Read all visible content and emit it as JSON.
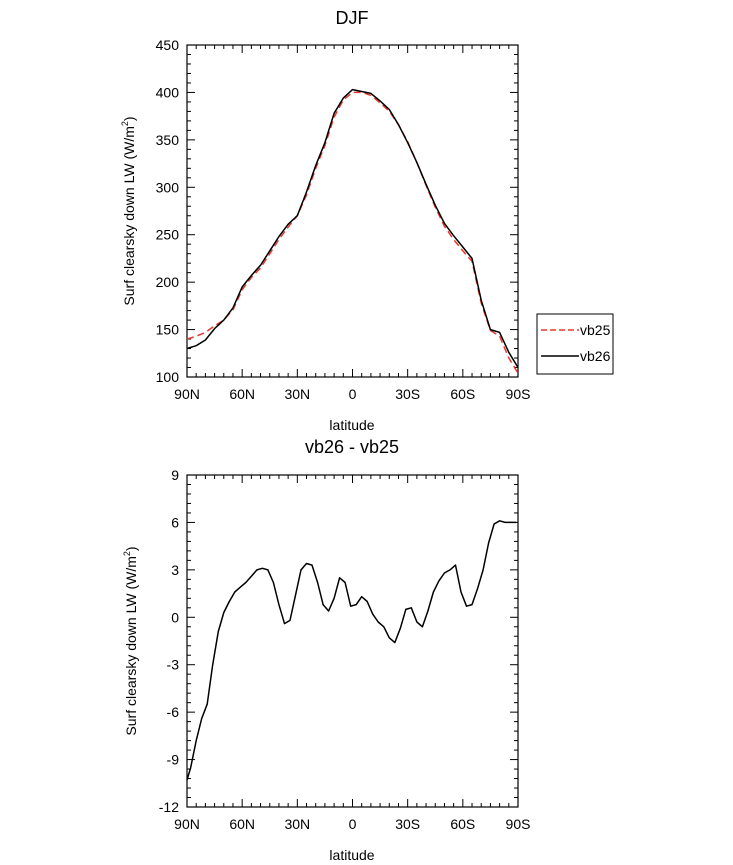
{
  "chart_data": [
    {
      "type": "line",
      "title": "DJF",
      "xlabel": "latitude",
      "ylabel": "Surf clearsky down LW (W/m",
      "ylabel_sup": "2",
      "ylabel_close": ")",
      "xlim": [
        90,
        -90
      ],
      "ylim": [
        100,
        450
      ],
      "xticks": [
        90,
        60,
        30,
        0,
        -30,
        -60,
        -90
      ],
      "xtick_labels": [
        "90N",
        "60N",
        "30N",
        "0",
        "30S",
        "60S",
        "90S"
      ],
      "yticks": [
        100,
        150,
        200,
        250,
        300,
        350,
        400,
        450
      ],
      "ytick_labels": [
        "100",
        "150",
        "200",
        "250",
        "300",
        "350",
        "400",
        "450"
      ],
      "legend": {
        "placement": "right",
        "entries": [
          "vb25",
          "vb26"
        ]
      },
      "series": [
        {
          "name": "vb25",
          "color": "#e8382d",
          "style": "dashed",
          "x": [
            90,
            85,
            80,
            75,
            70,
            65,
            60,
            55,
            50,
            45,
            40,
            35,
            30,
            25,
            20,
            15,
            10,
            5,
            0,
            -5,
            -10,
            -15,
            -20,
            -25,
            -30,
            -35,
            -40,
            -45,
            -50,
            -55,
            -60,
            -65,
            -70,
            -75,
            -80,
            -85,
            -90
          ],
          "y": [
            140,
            143,
            147,
            154,
            160,
            171,
            192,
            205,
            215,
            230,
            245,
            258,
            270,
            292,
            320,
            344,
            374,
            392,
            400,
            400,
            397,
            389,
            380,
            366,
            348,
            326,
            302,
            279,
            259,
            245,
            233,
            222,
            178,
            149,
            143,
            120,
            104
          ]
        },
        {
          "name": "vb26",
          "color": "#000000",
          "style": "solid",
          "x": [
            90,
            85,
            80,
            75,
            70,
            65,
            60,
            55,
            50,
            45,
            40,
            35,
            30,
            25,
            20,
            15,
            10,
            5,
            0,
            -5,
            -10,
            -15,
            -20,
            -25,
            -30,
            -35,
            -40,
            -45,
            -50,
            -55,
            -60,
            -65,
            -70,
            -75,
            -80,
            -85,
            -90
          ],
          "y": [
            130,
            133,
            139,
            151,
            160,
            173,
            195,
            207,
            218,
            233,
            248,
            261,
            270,
            295,
            323,
            347,
            378,
            394,
            403,
            401,
            399,
            391,
            382,
            366,
            347,
            326,
            303,
            281,
            262,
            249,
            237,
            225,
            181,
            150,
            147,
            126,
            110
          ]
        }
      ]
    },
    {
      "type": "line",
      "title": "vb26 - vb25",
      "xlabel": "latitude",
      "ylabel": "Surf clearsky down LW (W/m",
      "ylabel_sup": "2",
      "ylabel_close": ")",
      "xlim": [
        90,
        -90
      ],
      "ylim": [
        -12,
        9
      ],
      "xticks": [
        90,
        60,
        30,
        0,
        -30,
        -60,
        -90
      ],
      "xtick_labels": [
        "90N",
        "60N",
        "30N",
        "0",
        "30S",
        "60S",
        "90S"
      ],
      "yticks": [
        -12,
        -9,
        -6,
        -3,
        0,
        3,
        6,
        9
      ],
      "ytick_labels": [
        "-12",
        "-9",
        "-6",
        "-3",
        "0",
        "3",
        "6",
        "9"
      ],
      "series": [
        {
          "color": "#000000",
          "style": "solid",
          "x": [
            90,
            88,
            85,
            82,
            79,
            76,
            73,
            70,
            67,
            64,
            61,
            58,
            55,
            52,
            49,
            46,
            43,
            40,
            37,
            34,
            31,
            28,
            25,
            22,
            19,
            16,
            13,
            10,
            7,
            4,
            1,
            -2,
            -5,
            -8,
            -11,
            -14,
            -17,
            -20,
            -23,
            -26,
            -29,
            -32,
            -35,
            -38,
            -41,
            -44,
            -47,
            -50,
            -53,
            -56,
            -59,
            -62,
            -65,
            -68,
            -71,
            -74,
            -77,
            -80,
            -83,
            -86,
            -89
          ],
          "y": [
            -10.3,
            -9.5,
            -7.8,
            -6.4,
            -5.5,
            -3.0,
            -0.9,
            0.3,
            1.0,
            1.6,
            1.9,
            2.2,
            2.6,
            3.0,
            3.1,
            3.0,
            2.2,
            0.8,
            -0.4,
            -0.2,
            1.4,
            3.0,
            3.4,
            3.3,
            2.2,
            0.8,
            0.4,
            1.2,
            2.5,
            2.2,
            0.7,
            0.8,
            1.3,
            1.0,
            0.2,
            -0.3,
            -0.6,
            -1.3,
            -1.6,
            -0.7,
            0.5,
            0.6,
            -0.3,
            -0.6,
            0.4,
            1.6,
            2.3,
            2.8,
            3.0,
            3.3,
            1.6,
            0.7,
            0.8,
            1.8,
            3.0,
            4.7,
            5.9,
            6.1,
            6.0,
            6.0,
            6.0
          ]
        }
      ]
    }
  ]
}
